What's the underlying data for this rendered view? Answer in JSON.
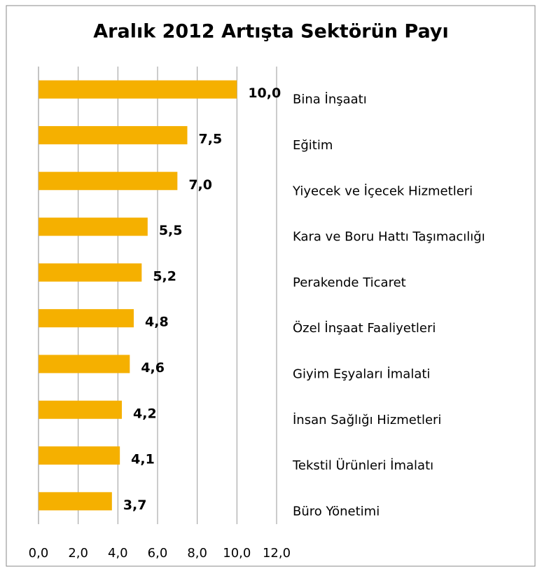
{
  "chart_data": {
    "type": "bar",
    "orientation": "horizontal",
    "title": "Aralık 2012 Artışta Sektörün Payı",
    "categories": [
      "Bina İnşaatı",
      "Eğitim",
      "Yiyecek ve İçecek Hizmetleri",
      "Kara ve Boru Hattı Taşımacılığı",
      "Perakende  Ticaret",
      "Özel İnşaat Faaliyetleri",
      "Giyim Eşyaları İmalati",
      "İnsan Sağlığı Hizmetleri",
      "Tekstil Ürünleri İmalatı",
      "Büro Yönetimi"
    ],
    "values": [
      10.0,
      7.5,
      7.0,
      5.5,
      5.2,
      4.8,
      4.6,
      4.2,
      4.1,
      3.7
    ],
    "value_labels": [
      "10,0",
      "7,5",
      "7,0",
      "5,5",
      "5,2",
      "4,8",
      "4,6",
      "4,2",
      "4,1",
      "3,7"
    ],
    "color": "#f5b000",
    "xlim": [
      0,
      12
    ],
    "xticks": [
      {
        "value": 0,
        "label": "0,0"
      },
      {
        "value": 2,
        "label": "2,0"
      },
      {
        "value": 4,
        "label": "4,0"
      },
      {
        "value": 6,
        "label": "6,0"
      },
      {
        "value": 8,
        "label": "8,0"
      },
      {
        "value": 10,
        "label": "10,0"
      },
      {
        "value": 12,
        "label": "12,0"
      }
    ],
    "grid": true
  }
}
